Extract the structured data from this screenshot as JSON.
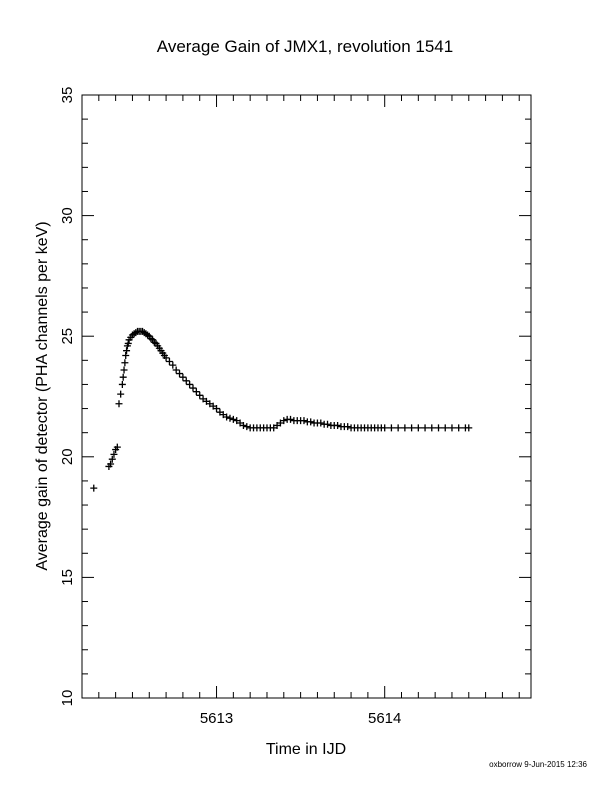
{
  "chart_data": {
    "type": "scatter",
    "title": "Average Gain of JMX1, revolution 1541",
    "xlabel": "Time in IJD",
    "ylabel": "Average gain of detector (PHA channels per keV)",
    "xlim": [
      5612.2,
      5614.87
    ],
    "ylim": [
      10,
      35
    ],
    "x_ticks_major": [
      5613,
      5614
    ],
    "x_ticks_minor_step": 0.1,
    "y_ticks_major": [
      10,
      15,
      20,
      25,
      30,
      35
    ],
    "y_ticks_minor_step": 1,
    "grid": false,
    "marker": "plus",
    "marker_color": "#000000",
    "series": [
      {
        "x": [
          5612.27,
          5612.36,
          5612.37,
          5612.38,
          5612.39,
          5612.4,
          5612.41,
          5612.42,
          5612.43,
          5612.44,
          5612.445,
          5612.45,
          5612.455,
          5612.46,
          5612.465,
          5612.47,
          5612.475,
          5612.48,
          5612.49,
          5612.5,
          5612.51,
          5612.52,
          5612.53,
          5612.54,
          5612.55,
          5612.56,
          5612.57,
          5612.58,
          5612.59,
          5612.6,
          5612.61,
          5612.62,
          5612.63,
          5612.64,
          5612.65,
          5612.66,
          5612.67,
          5612.68,
          5612.69,
          5612.7,
          5612.72,
          5612.74,
          5612.76,
          5612.78,
          5612.8,
          5612.82,
          5612.84,
          5612.86,
          5612.88,
          5612.9,
          5612.92,
          5612.94,
          5612.96,
          5612.98,
          5613.0,
          5613.02,
          5613.04,
          5613.06,
          5613.08,
          5613.1,
          5613.12,
          5613.14,
          5613.16,
          5613.18,
          5613.2,
          5613.22,
          5613.24,
          5613.26,
          5613.28,
          5613.3,
          5613.32,
          5613.34,
          5613.36,
          5613.38,
          5613.4,
          5613.42,
          5613.44,
          5613.46,
          5613.48,
          5613.5,
          5613.52,
          5613.54,
          5613.56,
          5613.58,
          5613.6,
          5613.62,
          5613.64,
          5613.66,
          5613.68,
          5613.7,
          5613.72,
          5613.74,
          5613.76,
          5613.78,
          5613.8,
          5613.82,
          5613.84,
          5613.86,
          5613.88,
          5613.9,
          5613.92,
          5613.94,
          5613.96,
          5613.98,
          5614.0,
          5614.04,
          5614.08,
          5614.12,
          5614.16,
          5614.2,
          5614.24,
          5614.28,
          5614.32,
          5614.36,
          5614.4,
          5614.44,
          5614.48,
          5614.5
        ],
        "y": [
          18.7,
          19.6,
          19.7,
          19.9,
          20.1,
          20.3,
          20.4,
          22.2,
          22.6,
          23.0,
          23.3,
          23.6,
          23.9,
          24.2,
          24.4,
          24.6,
          24.7,
          24.85,
          24.95,
          25.05,
          25.1,
          25.15,
          25.2,
          25.2,
          25.2,
          25.2,
          25.15,
          25.1,
          25.05,
          25.0,
          24.9,
          24.85,
          24.75,
          24.7,
          24.6,
          24.5,
          24.4,
          24.3,
          24.2,
          24.1,
          23.95,
          23.8,
          23.6,
          23.45,
          23.3,
          23.15,
          23.0,
          22.85,
          22.7,
          22.55,
          22.4,
          22.3,
          22.2,
          22.1,
          22.0,
          21.85,
          21.75,
          21.65,
          21.6,
          21.55,
          21.5,
          21.4,
          21.3,
          21.25,
          21.2,
          21.2,
          21.2,
          21.2,
          21.2,
          21.2,
          21.2,
          21.2,
          21.3,
          21.4,
          21.5,
          21.55,
          21.55,
          21.5,
          21.5,
          21.5,
          21.5,
          21.45,
          21.45,
          21.4,
          21.4,
          21.4,
          21.35,
          21.35,
          21.3,
          21.3,
          21.3,
          21.25,
          21.25,
          21.25,
          21.2,
          21.2,
          21.2,
          21.2,
          21.2,
          21.2,
          21.2,
          21.2,
          21.2,
          21.2,
          21.2,
          21.2,
          21.2,
          21.2,
          21.2,
          21.2,
          21.2,
          21.2,
          21.2,
          21.2,
          21.2,
          21.2,
          21.2,
          21.2
        ]
      }
    ]
  },
  "footer": {
    "text": "oxborrow  9-Jun-2015 12:36"
  }
}
